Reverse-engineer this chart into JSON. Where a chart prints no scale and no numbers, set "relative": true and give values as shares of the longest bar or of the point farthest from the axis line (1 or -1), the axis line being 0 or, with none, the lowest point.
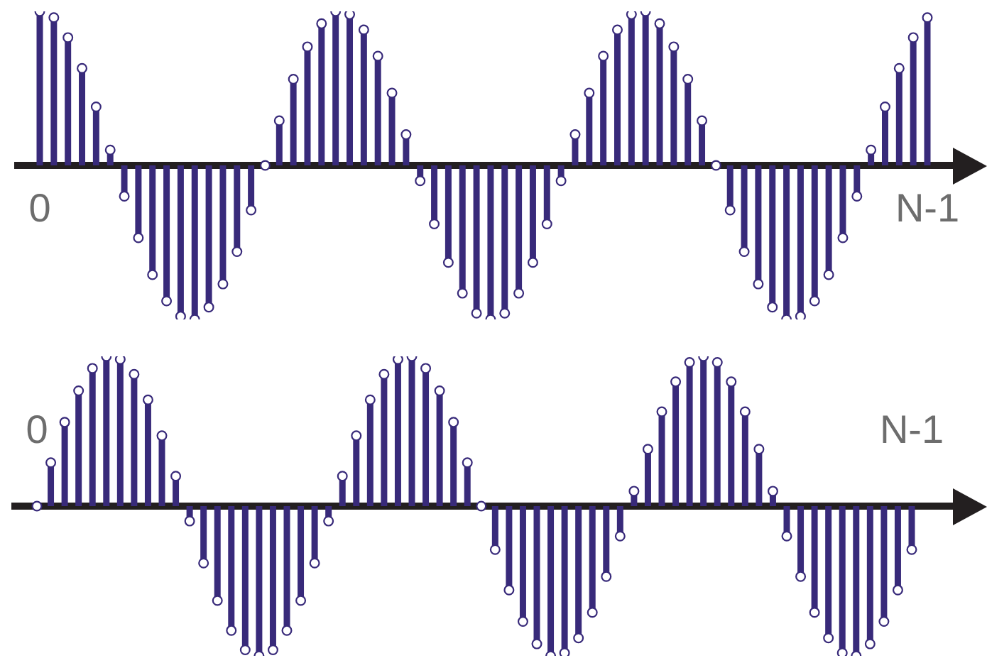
{
  "chart_data": [
    {
      "type": "lollipop",
      "relative": true,
      "marker": "circle",
      "color": "#382a7a",
      "categories": [
        "0",
        null,
        null,
        null,
        null,
        null,
        null,
        null,
        null,
        null,
        null,
        null,
        null,
        null,
        null,
        null,
        null,
        null,
        null,
        null,
        null,
        null,
        null,
        null,
        null,
        null,
        null,
        null,
        null,
        null,
        null,
        null,
        null,
        null,
        null,
        null,
        null,
        null,
        null,
        null,
        null,
        null,
        null,
        null,
        null,
        null,
        null,
        null,
        null,
        null,
        null,
        null,
        null,
        null,
        null,
        null,
        null,
        null,
        null,
        null,
        null,
        null,
        null,
        "N-1"
      ],
      "values": [
        1,
        0.96,
        0.83,
        0.63,
        0.38,
        0.1,
        -0.2,
        -0.47,
        -0.71,
        -0.88,
        -0.98,
        -1,
        -0.92,
        -0.77,
        -0.56,
        -0.29,
        0,
        0.29,
        0.56,
        0.77,
        0.92,
        1,
        0.98,
        0.88,
        0.71,
        0.47,
        0.2,
        -0.1,
        -0.38,
        -0.63,
        -0.83,
        -0.96,
        -1,
        -0.96,
        -0.83,
        -0.63,
        -0.38,
        -0.1,
        0.2,
        0.47,
        0.71,
        0.88,
        0.98,
        1,
        0.92,
        0.77,
        0.56,
        0.29,
        0,
        -0.29,
        -0.56,
        -0.77,
        -0.92,
        -1,
        -0.98,
        -0.88,
        -0.71,
        -0.47,
        -0.2,
        0.1,
        0.38,
        0.63,
        0.83,
        0.96
      ]
    },
    {
      "type": "lollipop",
      "relative": true,
      "marker": "circle",
      "color": "#382a7a",
      "categories": [
        "0",
        null,
        null,
        null,
        null,
        null,
        null,
        null,
        null,
        null,
        null,
        null,
        null,
        null,
        null,
        null,
        null,
        null,
        null,
        null,
        null,
        null,
        null,
        null,
        null,
        null,
        null,
        null,
        null,
        null,
        null,
        null,
        null,
        null,
        null,
        null,
        null,
        null,
        null,
        null,
        null,
        null,
        null,
        null,
        null,
        null,
        null,
        null,
        null,
        null,
        null,
        null,
        null,
        null,
        null,
        null,
        null,
        null,
        null,
        null,
        null,
        null,
        null,
        "N-1"
      ],
      "values": [
        0,
        0.29,
        0.56,
        0.77,
        0.92,
        1,
        0.98,
        0.88,
        0.71,
        0.47,
        0.2,
        -0.1,
        -0.38,
        -0.63,
        -0.83,
        -0.96,
        -1,
        -0.96,
        -0.83,
        -0.63,
        -0.38,
        -0.1,
        0.2,
        0.47,
        0.71,
        0.88,
        0.98,
        1,
        0.92,
        0.77,
        0.56,
        0.29,
        0,
        -0.29,
        -0.56,
        -0.77,
        -0.92,
        -1,
        -0.98,
        -0.88,
        -0.71,
        -0.47,
        -0.2,
        0.1,
        0.38,
        0.63,
        0.83,
        0.96,
        1,
        0.96,
        0.83,
        0.63,
        0.38,
        0.1,
        -0.2,
        -0.47,
        -0.71,
        -0.88,
        -0.98,
        -1,
        -0.92,
        -0.77,
        -0.56,
        -0.29
      ]
    }
  ]
}
